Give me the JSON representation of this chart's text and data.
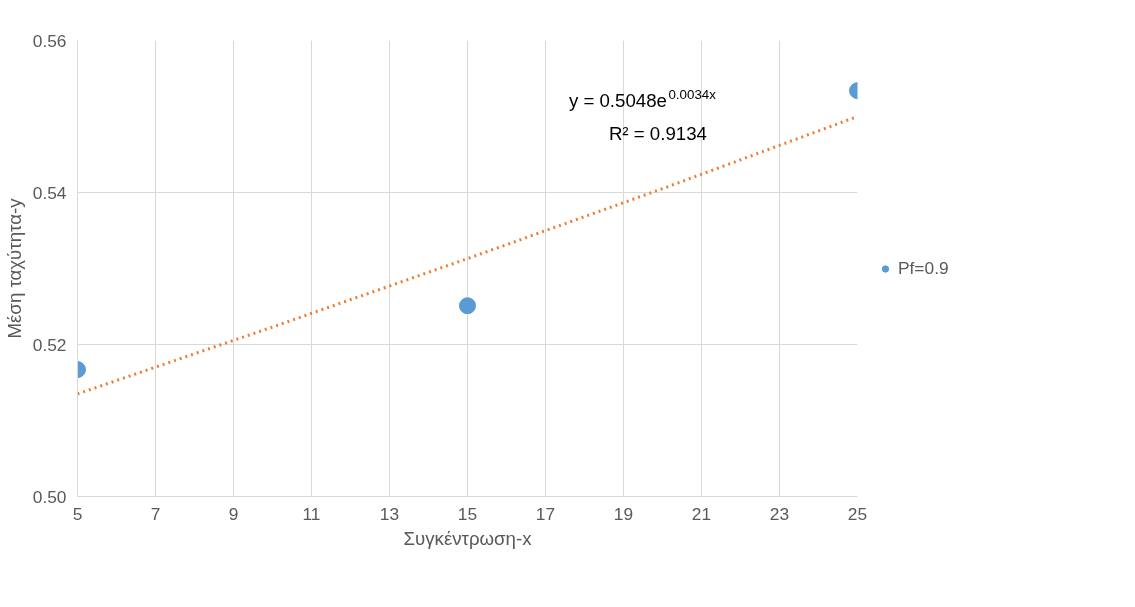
{
  "chart_data": {
    "type": "scatter",
    "xlabel": "Συγκέντρωση-x",
    "ylabel": "Μέση ταχύτητα-y",
    "xlim": [
      5,
      25
    ],
    "xticks": [
      5,
      7,
      9,
      11,
      13,
      15,
      17,
      19,
      21,
      23,
      25
    ],
    "ylim": [
      0.5,
      0.56
    ],
    "yticks": [
      {
        "value": 0.5,
        "label": "0.50"
      },
      0.52,
      0.54,
      0.56
    ],
    "grid": true,
    "legend": "right",
    "marker": "circle",
    "series": [
      {
        "name": "Pf=0.9",
        "color": "#5b9bd5",
        "x": [
          5,
          15,
          25
        ],
        "values": [
          0.5167,
          0.5251,
          0.5534
        ]
      },
      {
        "type": "line",
        "color": "#ed7d31",
        "line_style": "dotted",
        "marker": "none",
        "x": [
          5,
          10,
          15,
          20,
          25
        ],
        "values": [
          0.5135,
          0.5223,
          0.5313,
          0.5405,
          0.55
        ]
      }
    ],
    "annotations": [
      "y = 0.5048e$^{0.0034x}$",
      "R² = 0.9134"
    ]
  }
}
